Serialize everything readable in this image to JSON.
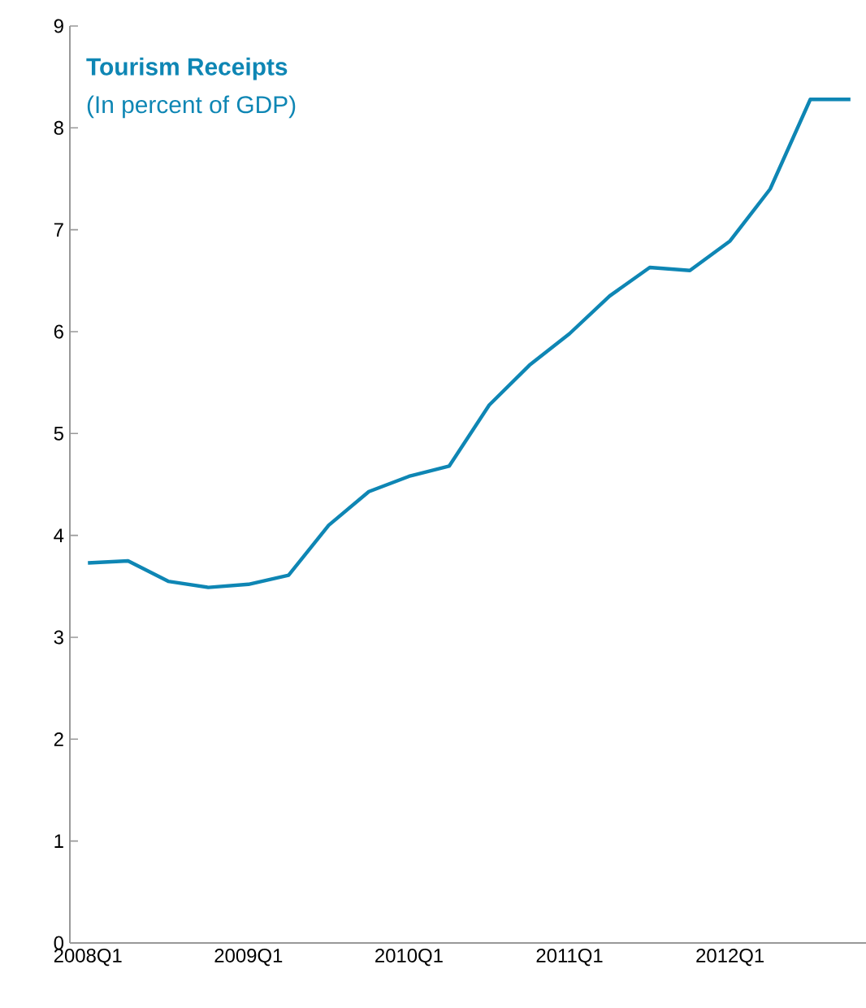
{
  "chart_data": {
    "type": "line",
    "title": "Tourism Receipts",
    "subtitle": "(In percent of GDP)",
    "categories": [
      "2008Q1",
      null,
      null,
      null,
      "2009Q1",
      null,
      null,
      null,
      "2010Q1",
      null,
      null,
      null,
      "2011Q1",
      null,
      null,
      null,
      "2012Q1",
      null,
      null,
      null
    ],
    "values": [
      3.73,
      3.75,
      3.55,
      3.49,
      3.52,
      3.61,
      4.1,
      4.43,
      4.58,
      4.68,
      5.28,
      5.67,
      5.98,
      6.35,
      6.63,
      6.6,
      6.89,
      7.4,
      8.28,
      8.28
    ],
    "color": "#0e86b4",
    "ylim": [
      0,
      9
    ],
    "yticks": [
      0,
      1,
      2,
      3,
      4,
      5,
      6,
      7,
      8,
      9
    ]
  }
}
